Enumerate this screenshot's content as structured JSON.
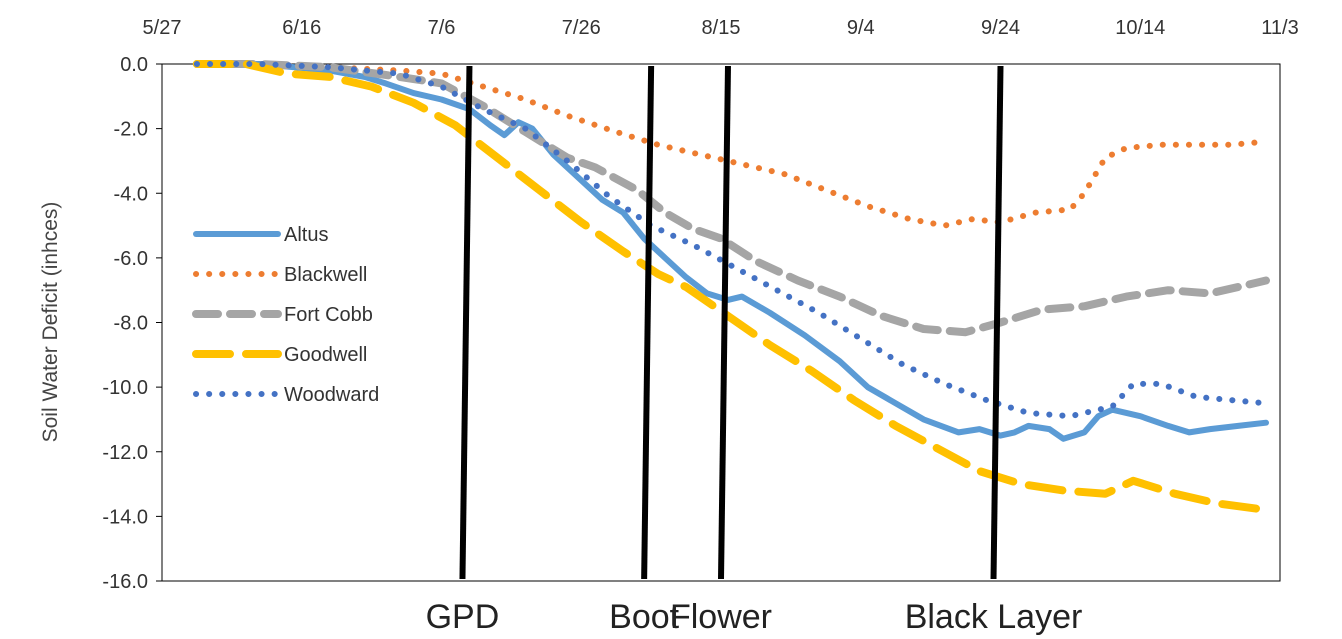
{
  "chart_data": {
    "type": "line",
    "title": "",
    "xlabel": "",
    "ylabel": "Soil Water Deficit (inhces)",
    "x_axis": {
      "type": "date",
      "year": 2019,
      "range": [
        "2019-05-27",
        "2019-11-03"
      ],
      "tick_labels": [
        "5/27",
        "6/16",
        "7/6",
        "7/26",
        "8/15",
        "9/4",
        "9/24",
        "10/14",
        "11/3"
      ],
      "tick_dates": [
        "2019-05-27",
        "2019-06-16",
        "2019-07-06",
        "2019-07-26",
        "2019-08-15",
        "2019-09-04",
        "2019-09-24",
        "2019-10-14",
        "2019-11-03"
      ],
      "position": "top"
    },
    "y_axis": {
      "range": [
        -16,
        0
      ],
      "tick_values": [
        0,
        -2,
        -4,
        -6,
        -8,
        -10,
        -12,
        -14,
        -16
      ],
      "tick_labels": [
        "0.0",
        "-2.0",
        "-4.0",
        "-6.0",
        "-8.0",
        "-10.0",
        "-12.0",
        "-14.0",
        "-16.0"
      ]
    },
    "grid": false,
    "legend": {
      "placement": "left"
    },
    "series": [
      {
        "name": "Altus",
        "color": "#5B9BD5",
        "dash": "solid",
        "points": [
          [
            "2019-06-01",
            0.0
          ],
          [
            "2019-06-10",
            0.0
          ],
          [
            "2019-06-20",
            -0.2
          ],
          [
            "2019-06-25",
            -0.4
          ],
          [
            "2019-06-28",
            -0.6
          ],
          [
            "2019-07-02",
            -0.9
          ],
          [
            "2019-07-06",
            -1.1
          ],
          [
            "2019-07-10",
            -1.4
          ],
          [
            "2019-07-13",
            -1.9
          ],
          [
            "2019-07-15",
            -2.2
          ],
          [
            "2019-07-17",
            -1.8
          ],
          [
            "2019-07-19",
            -2.0
          ],
          [
            "2019-07-22",
            -2.8
          ],
          [
            "2019-07-25",
            -3.4
          ],
          [
            "2019-07-29",
            -4.2
          ],
          [
            "2019-08-01",
            -4.6
          ],
          [
            "2019-08-04",
            -5.4
          ],
          [
            "2019-08-07",
            -6.0
          ],
          [
            "2019-08-10",
            -6.6
          ],
          [
            "2019-08-13",
            -7.1
          ],
          [
            "2019-08-16",
            -7.3
          ],
          [
            "2019-08-18",
            -7.2
          ],
          [
            "2019-08-22",
            -7.7
          ],
          [
            "2019-08-27",
            -8.4
          ],
          [
            "2019-09-01",
            -9.2
          ],
          [
            "2019-09-05",
            -10.0
          ],
          [
            "2019-09-09",
            -10.5
          ],
          [
            "2019-09-13",
            -11.0
          ],
          [
            "2019-09-18",
            -11.4
          ],
          [
            "2019-09-21",
            -11.3
          ],
          [
            "2019-09-24",
            -11.5
          ],
          [
            "2019-09-26",
            -11.4
          ],
          [
            "2019-09-28",
            -11.2
          ],
          [
            "2019-10-01",
            -11.3
          ],
          [
            "2019-10-03",
            -11.6
          ],
          [
            "2019-10-06",
            -11.4
          ],
          [
            "2019-10-08",
            -10.9
          ],
          [
            "2019-10-10",
            -10.7
          ],
          [
            "2019-10-14",
            -10.9
          ],
          [
            "2019-10-18",
            -11.2
          ],
          [
            "2019-10-21",
            -11.4
          ],
          [
            "2019-10-24",
            -11.3
          ],
          [
            "2019-10-28",
            -11.2
          ],
          [
            "2019-11-01",
            -11.1
          ]
        ]
      },
      {
        "name": "Blackwell",
        "color": "#ED7D31",
        "dash": "dot",
        "points": [
          [
            "2019-06-01",
            0.0
          ],
          [
            "2019-06-10",
            0.0
          ],
          [
            "2019-06-20",
            -0.1
          ],
          [
            "2019-06-30",
            -0.2
          ],
          [
            "2019-07-06",
            -0.3
          ],
          [
            "2019-07-12",
            -0.7
          ],
          [
            "2019-07-18",
            -1.1
          ],
          [
            "2019-07-24",
            -1.6
          ],
          [
            "2019-07-31",
            -2.1
          ],
          [
            "2019-08-06",
            -2.5
          ],
          [
            "2019-08-12",
            -2.8
          ],
          [
            "2019-08-18",
            -3.1
          ],
          [
            "2019-08-24",
            -3.4
          ],
          [
            "2019-08-30",
            -3.9
          ],
          [
            "2019-09-05",
            -4.4
          ],
          [
            "2019-09-11",
            -4.8
          ],
          [
            "2019-09-16",
            -5.0
          ],
          [
            "2019-09-20",
            -4.8
          ],
          [
            "2019-09-24",
            -4.9
          ],
          [
            "2019-09-29",
            -4.6
          ],
          [
            "2019-10-04",
            -4.5
          ],
          [
            "2019-10-06",
            -4.0
          ],
          [
            "2019-10-09",
            -2.9
          ],
          [
            "2019-10-12",
            -2.6
          ],
          [
            "2019-10-17",
            -2.5
          ],
          [
            "2019-10-22",
            -2.5
          ],
          [
            "2019-10-27",
            -2.5
          ],
          [
            "2019-11-01",
            -2.4
          ]
        ]
      },
      {
        "name": "Fort Cobb",
        "color": "#A5A5A5",
        "dash": "dash",
        "points": [
          [
            "2019-06-01",
            0.0
          ],
          [
            "2019-06-10",
            0.0
          ],
          [
            "2019-06-20",
            -0.1
          ],
          [
            "2019-06-30",
            -0.4
          ],
          [
            "2019-07-06",
            -0.6
          ],
          [
            "2019-07-12",
            -1.3
          ],
          [
            "2019-07-18",
            -2.1
          ],
          [
            "2019-07-24",
            -2.9
          ],
          [
            "2019-07-28",
            -3.2
          ],
          [
            "2019-08-03",
            -3.9
          ],
          [
            "2019-08-07",
            -4.6
          ],
          [
            "2019-08-11",
            -5.1
          ],
          [
            "2019-08-15",
            -5.4
          ],
          [
            "2019-08-20",
            -6.1
          ],
          [
            "2019-08-26",
            -6.7
          ],
          [
            "2019-09-01",
            -7.2
          ],
          [
            "2019-09-07",
            -7.8
          ],
          [
            "2019-09-13",
            -8.2
          ],
          [
            "2019-09-19",
            -8.3
          ],
          [
            "2019-09-24",
            -8.0
          ],
          [
            "2019-09-30",
            -7.6
          ],
          [
            "2019-10-06",
            -7.5
          ],
          [
            "2019-10-12",
            -7.2
          ],
          [
            "2019-10-18",
            -7.0
          ],
          [
            "2019-10-24",
            -7.1
          ],
          [
            "2019-10-28",
            -6.9
          ],
          [
            "2019-11-01",
            -6.7
          ]
        ]
      },
      {
        "name": "Goodwell",
        "color": "#FFC000",
        "dash": "longdash",
        "points": [
          [
            "2019-06-01",
            0.0
          ],
          [
            "2019-06-08",
            0.0
          ],
          [
            "2019-06-14",
            -0.3
          ],
          [
            "2019-06-20",
            -0.4
          ],
          [
            "2019-06-26",
            -0.7
          ],
          [
            "2019-07-02",
            -1.2
          ],
          [
            "2019-07-08",
            -1.9
          ],
          [
            "2019-07-14",
            -2.9
          ],
          [
            "2019-07-20",
            -3.9
          ],
          [
            "2019-07-26",
            -4.9
          ],
          [
            "2019-08-01",
            -5.8
          ],
          [
            "2019-08-06",
            -6.5
          ],
          [
            "2019-08-10",
            -6.9
          ],
          [
            "2019-08-16",
            -7.8
          ],
          [
            "2019-08-22",
            -8.7
          ],
          [
            "2019-08-28",
            -9.5
          ],
          [
            "2019-09-03",
            -10.4
          ],
          [
            "2019-09-09",
            -11.2
          ],
          [
            "2019-09-15",
            -11.9
          ],
          [
            "2019-09-21",
            -12.6
          ],
          [
            "2019-09-27",
            -13.0
          ],
          [
            "2019-10-03",
            -13.2
          ],
          [
            "2019-10-09",
            -13.3
          ],
          [
            "2019-10-13",
            -12.9
          ],
          [
            "2019-10-19",
            -13.3
          ],
          [
            "2019-10-25",
            -13.6
          ],
          [
            "2019-11-01",
            -13.8
          ]
        ]
      },
      {
        "name": "Woodward",
        "color": "#4472C4",
        "dash": "dot",
        "points": [
          [
            "2019-06-01",
            0.0
          ],
          [
            "2019-06-10",
            0.0
          ],
          [
            "2019-06-20",
            -0.1
          ],
          [
            "2019-06-30",
            -0.3
          ],
          [
            "2019-07-06",
            -0.7
          ],
          [
            "2019-07-12",
            -1.4
          ],
          [
            "2019-07-18",
            -2.0
          ],
          [
            "2019-07-24",
            -3.0
          ],
          [
            "2019-07-30",
            -4.1
          ],
          [
            "2019-08-05",
            -5.0
          ],
          [
            "2019-08-11",
            -5.6
          ],
          [
            "2019-08-17",
            -6.3
          ],
          [
            "2019-08-23",
            -7.0
          ],
          [
            "2019-08-29",
            -7.7
          ],
          [
            "2019-09-04",
            -8.5
          ],
          [
            "2019-09-10",
            -9.3
          ],
          [
            "2019-09-16",
            -9.9
          ],
          [
            "2019-09-22",
            -10.4
          ],
          [
            "2019-09-28",
            -10.8
          ],
          [
            "2019-10-04",
            -10.9
          ],
          [
            "2019-10-10",
            -10.6
          ],
          [
            "2019-10-13",
            -9.9
          ],
          [
            "2019-10-17",
            -9.9
          ],
          [
            "2019-10-22",
            -10.3
          ],
          [
            "2019-10-27",
            -10.4
          ],
          [
            "2019-11-01",
            -10.5
          ]
        ]
      }
    ],
    "annotations": {
      "growth_stages": [
        {
          "label": "GPD",
          "top_date": "2019-07-10",
          "bottom_date": "2019-07-09"
        },
        {
          "label": "Boot",
          "top_date": "2019-08-05",
          "bottom_date": "2019-08-04"
        },
        {
          "label": "Flower",
          "top_date": "2019-08-16",
          "bottom_date": "2019-08-15"
        },
        {
          "label": "Black Layer",
          "top_date": "2019-09-24",
          "bottom_date": "2019-09-23"
        }
      ],
      "stage_line_color": "#000000"
    }
  }
}
